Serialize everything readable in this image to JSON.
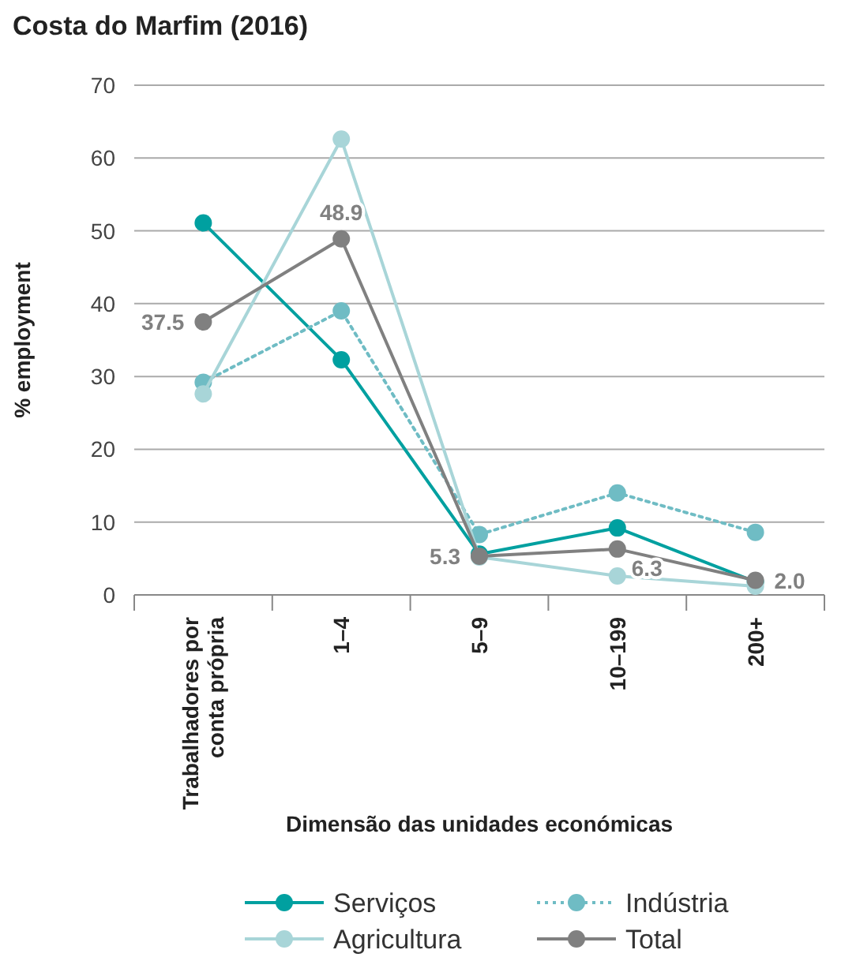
{
  "chart_data": {
    "type": "line",
    "title": "Costa do Marfim (2016)",
    "xlabel": "Dimensão das unidades económicas",
    "ylabel": "% employment",
    "categories": [
      "Trabalhadores por conta própria",
      "1–4",
      "5–9",
      "10–199",
      "200+"
    ],
    "series": [
      {
        "name": "Serviços",
        "color": "#00a0a0",
        "values": [
          51.1,
          32.3,
          5.6,
          9.2,
          1.8
        ],
        "line_style": "solid"
      },
      {
        "name": "Indústria",
        "color": "#6fbcc4",
        "values": [
          29.2,
          39.0,
          8.3,
          14.0,
          8.6
        ],
        "line_style": "dotted"
      },
      {
        "name": "Agricultura",
        "color": "#a8d5d8",
        "values": [
          27.6,
          62.6,
          5.2,
          2.6,
          1.2
        ],
        "line_style": "solid"
      },
      {
        "name": "Total",
        "color": "#808080",
        "values": [
          37.5,
          48.9,
          5.3,
          6.3,
          2.0
        ],
        "line_style": "solid",
        "value_labels": [
          "37.5",
          "48.9",
          "5.3",
          "6.3",
          "2.0"
        ]
      }
    ],
    "ylim": [
      0,
      70
    ],
    "yticks": [
      0,
      10,
      20,
      30,
      40,
      50,
      60,
      70
    ],
    "grid": "y",
    "legend": "bottom",
    "marker": "circle"
  }
}
